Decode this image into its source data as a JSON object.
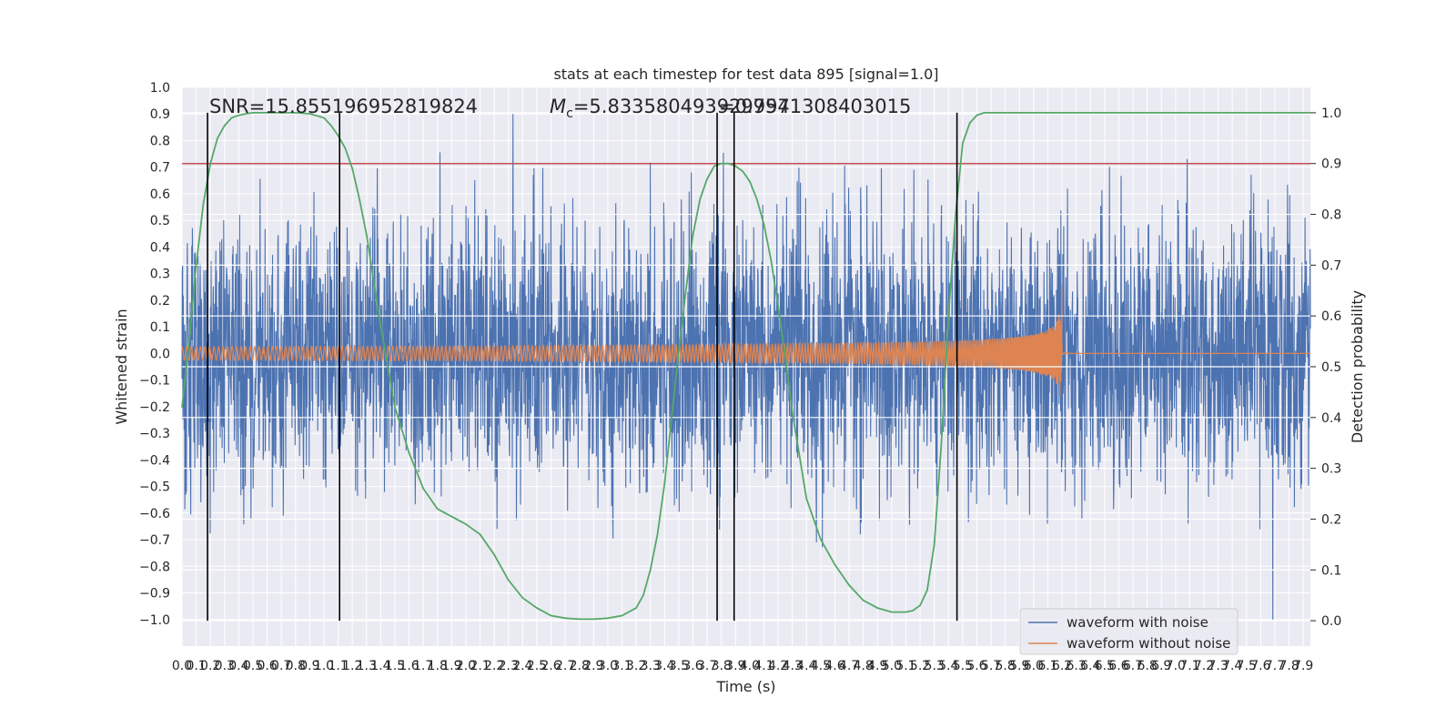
{
  "chart_data": {
    "type": "line",
    "title": "stats at each timestep for test data 895 [signal=1.0]",
    "xlabel": "Time (s)",
    "ylabel": "Whitened strain",
    "y2label": "Detection probability",
    "xlim": [
      0.0,
      7.95
    ],
    "ylim": [
      -1.1,
      1.0
    ],
    "y2lim": [
      -0.05,
      1.05
    ],
    "x_ticks": [
      "0.0",
      "0.1",
      "0.2",
      "0.3",
      "0.4",
      "0.5",
      "0.6",
      "0.7",
      "0.8",
      "0.9",
      "1.0",
      "1.1",
      "1.2",
      "1.3",
      "1.4",
      "1.5",
      "1.6",
      "1.7",
      "1.8",
      "1.9",
      "2.0",
      "2.1",
      "2.2",
      "2.3",
      "2.4",
      "2.5",
      "2.6",
      "2.7",
      "2.8",
      "2.9",
      "3.0",
      "3.1",
      "3.2",
      "3.3",
      "3.4",
      "3.5",
      "3.6",
      "3.7",
      "3.8",
      "3.9",
      "4.0",
      "4.1",
      "4.2",
      "4.3",
      "4.4",
      "4.5",
      "4.6",
      "4.7",
      "4.8",
      "4.9",
      "5.0",
      "5.1",
      "5.2",
      "5.3",
      "5.4",
      "5.5",
      "5.6",
      "5.7",
      "5.8",
      "5.9",
      "6.0",
      "6.1",
      "6.2",
      "6.3",
      "6.4",
      "6.5",
      "6.6",
      "6.7",
      "6.8",
      "6.9",
      "7.0",
      "7.1",
      "7.2",
      "7.3",
      "7.4",
      "7.5",
      "7.6",
      "7.7",
      "7.8",
      "7.9"
    ],
    "y_ticks": [
      "−1.0",
      "−0.9",
      "−0.8",
      "−0.7",
      "−0.6",
      "−0.5",
      "−0.4",
      "−0.3",
      "−0.2",
      "−0.1",
      "0.0",
      "0.1",
      "0.2",
      "0.3",
      "0.4",
      "0.5",
      "0.6",
      "0.7",
      "0.8",
      "0.9",
      "1.0"
    ],
    "y2_ticks": [
      "0.0",
      "0.1",
      "0.2",
      "0.3",
      "0.4",
      "0.5",
      "0.6",
      "0.7",
      "0.8",
      "0.9",
      "1.0"
    ],
    "annotations": {
      "snr": "SNR=15.855196952819824",
      "mc_symbol": "M",
      "mc_sub": "c",
      "mc_value": "=5.833580493929997",
      "overlap": "=0.7541308403015"
    },
    "threshold": {
      "value": 0.9,
      "axis": "y2",
      "color": "#c44e52"
    },
    "vlines": [
      0.18,
      1.11,
      3.77,
      3.89,
      5.46
    ],
    "legend": {
      "placement": "lower-right",
      "entries": [
        "waveform with noise",
        "waveform without noise"
      ]
    },
    "series": [
      {
        "name": "waveform with noise",
        "color": "#4c72b0",
        "axis": "y",
        "noise_amplitude": 0.25,
        "max": 0.9,
        "min": -1.0
      },
      {
        "name": "waveform without noise",
        "color": "#dd8452",
        "axis": "y",
        "chirp": {
          "start_amplitude": 0.025,
          "peak_amplitude": 0.37,
          "peak_time": 6.2
        }
      },
      {
        "axis": "y2",
        "color": "#55a868",
        "x": [
          0.0,
          0.05,
          0.1,
          0.15,
          0.2,
          0.25,
          0.3,
          0.35,
          0.4,
          0.45,
          0.5,
          0.6,
          0.7,
          0.8,
          0.9,
          1.0,
          1.05,
          1.1,
          1.15,
          1.2,
          1.25,
          1.3,
          1.35,
          1.4,
          1.5,
          1.6,
          1.7,
          1.8,
          1.9,
          2.0,
          2.1,
          2.2,
          2.3,
          2.4,
          2.5,
          2.6,
          2.7,
          2.8,
          2.9,
          3.0,
          3.1,
          3.2,
          3.25,
          3.3,
          3.35,
          3.4,
          3.45,
          3.5,
          3.55,
          3.6,
          3.65,
          3.7,
          3.75,
          3.8,
          3.85,
          3.9,
          3.95,
          4.0,
          4.05,
          4.1,
          4.15,
          4.2,
          4.25,
          4.3,
          4.4,
          4.5,
          4.6,
          4.7,
          4.8,
          4.9,
          5.0,
          5.1,
          5.15,
          5.2,
          5.25,
          5.3,
          5.35,
          5.4,
          5.45,
          5.5,
          5.55,
          5.6,
          5.65,
          5.7,
          5.8,
          6.0,
          6.5,
          7.0,
          7.5,
          7.95
        ],
        "values": [
          0.42,
          0.55,
          0.7,
          0.82,
          0.9,
          0.95,
          0.975,
          0.99,
          0.995,
          0.998,
          1.0,
          1.0,
          1.0,
          1.0,
          0.998,
          0.99,
          0.975,
          0.955,
          0.93,
          0.89,
          0.83,
          0.76,
          0.67,
          0.58,
          0.42,
          0.33,
          0.26,
          0.22,
          0.205,
          0.19,
          0.17,
          0.13,
          0.08,
          0.045,
          0.025,
          0.01,
          0.005,
          0.003,
          0.003,
          0.005,
          0.01,
          0.025,
          0.05,
          0.1,
          0.17,
          0.27,
          0.4,
          0.53,
          0.65,
          0.76,
          0.83,
          0.87,
          0.895,
          0.9,
          0.9,
          0.895,
          0.885,
          0.865,
          0.83,
          0.78,
          0.71,
          0.62,
          0.52,
          0.41,
          0.24,
          0.16,
          0.11,
          0.07,
          0.04,
          0.025,
          0.017,
          0.017,
          0.02,
          0.03,
          0.06,
          0.15,
          0.35,
          0.6,
          0.8,
          0.94,
          0.98,
          0.995,
          1.0,
          1.0,
          1.0,
          1.0,
          1.0,
          1.0,
          1.0,
          1.0
        ]
      }
    ]
  }
}
